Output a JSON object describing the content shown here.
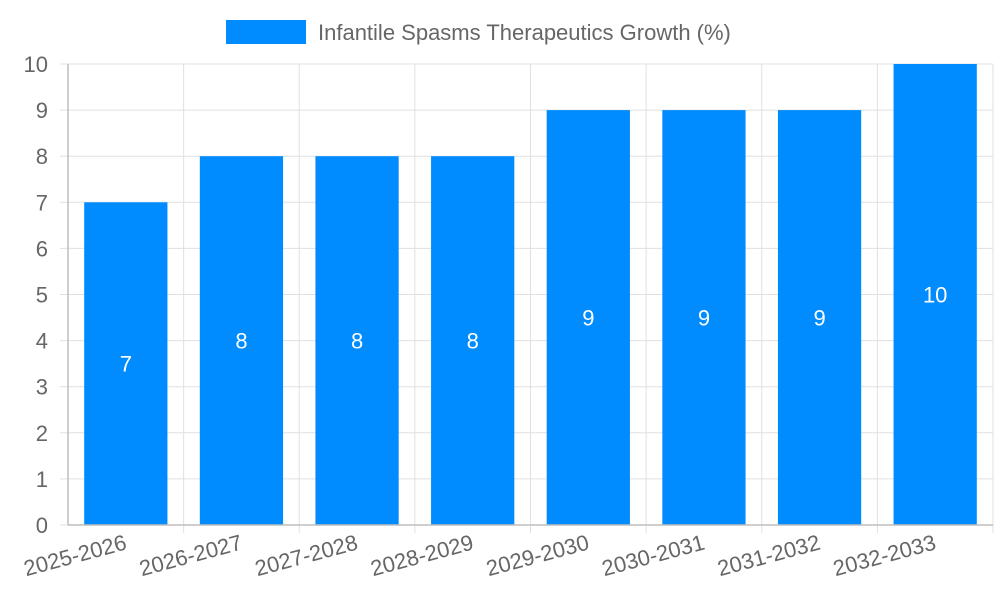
{
  "chart_data": {
    "type": "bar",
    "categories": [
      "2025-2026",
      "2026-2027",
      "2027-2028",
      "2028-2029",
      "2029-2030",
      "2030-2031",
      "2031-2032",
      "2032-2033"
    ],
    "series": [
      {
        "name": "Infantile Spasms Therapeutics Growth (%)",
        "values": [
          7,
          8,
          8,
          8,
          9,
          9,
          9,
          10
        ],
        "color": "#008cff"
      }
    ],
    "ylim": [
      0,
      10
    ],
    "yticks": [
      0,
      1,
      2,
      3,
      4,
      5,
      6,
      7,
      8,
      9,
      10
    ],
    "grid": true,
    "legend_position": "top",
    "data_labels": true,
    "colors": {
      "grid": "#e0e0e0",
      "axis": "#bdbdbd",
      "text": "#666666",
      "label": "#ffffff"
    }
  }
}
